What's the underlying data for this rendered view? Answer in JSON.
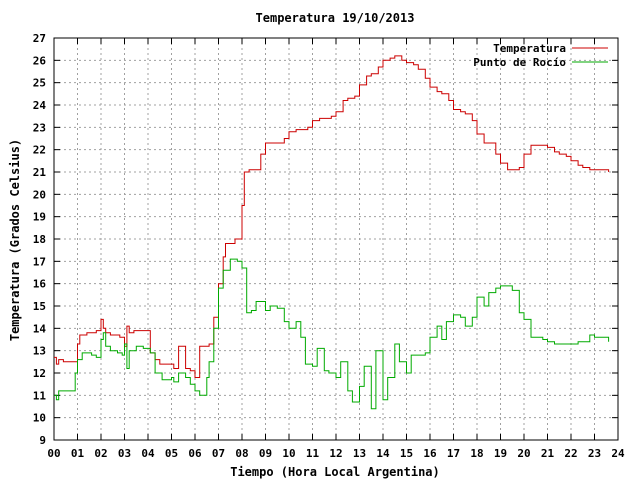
{
  "chart_data": {
    "type": "line",
    "title": "Temperatura 19/10/2013",
    "xlabel": "Tiempo (Hora Local Argentina)",
    "ylabel": "Temperatura (Grados Celsius)",
    "xlim": [
      0,
      24
    ],
    "ylim": [
      9,
      27
    ],
    "xticks": [
      "00",
      "01",
      "02",
      "03",
      "04",
      "05",
      "06",
      "07",
      "08",
      "09",
      "10",
      "11",
      "12",
      "13",
      "14",
      "15",
      "16",
      "17",
      "18",
      "19",
      "20",
      "21",
      "22",
      "23",
      "24"
    ],
    "yticks": [
      9,
      10,
      11,
      12,
      13,
      14,
      15,
      16,
      17,
      18,
      19,
      20,
      21,
      22,
      23,
      24,
      25,
      26,
      27
    ],
    "grid": true,
    "legend_position": "top-right",
    "series": [
      {
        "name": "Temperatura",
        "color": "#cc0000",
        "x": [
          0.0,
          0.1,
          0.2,
          0.4,
          0.6,
          0.9,
          1.0,
          1.1,
          1.4,
          1.8,
          2.0,
          2.1,
          2.2,
          2.4,
          2.8,
          3.0,
          3.1,
          3.2,
          3.4,
          3.8,
          4.1,
          4.3,
          4.5,
          4.8,
          5.0,
          5.1,
          5.3,
          5.6,
          5.8,
          6.0,
          6.2,
          6.5,
          6.6,
          6.8,
          7.0,
          7.2,
          7.3,
          7.5,
          7.7,
          8.0,
          8.1,
          8.3,
          8.5,
          8.8,
          9.0,
          9.3,
          9.5,
          9.8,
          10.0,
          10.3,
          10.5,
          10.8,
          11.0,
          11.3,
          11.5,
          11.8,
          12.0,
          12.3,
          12.5,
          12.8,
          13.0,
          13.3,
          13.5,
          13.8,
          14.0,
          14.3,
          14.5,
          14.8,
          15.0,
          15.3,
          15.5,
          15.8,
          16.0,
          16.3,
          16.5,
          16.8,
          17.0,
          17.3,
          17.5,
          17.8,
          18.0,
          18.3,
          18.5,
          18.8,
          19.0,
          19.3,
          19.5,
          19.8,
          20.0,
          20.3,
          20.5,
          20.8,
          21.0,
          21.3,
          21.5,
          21.8,
          22.0,
          22.3,
          22.5,
          22.8,
          23.0,
          23.3,
          23.5,
          23.6
        ],
        "y": [
          12.7,
          12.4,
          12.6,
          12.5,
          12.5,
          12.5,
          13.3,
          13.7,
          13.8,
          13.9,
          14.4,
          14.0,
          13.8,
          13.7,
          13.6,
          13.2,
          14.1,
          13.8,
          13.9,
          13.9,
          12.9,
          12.6,
          12.4,
          12.4,
          12.4,
          12.2,
          13.2,
          12.2,
          12.1,
          11.8,
          13.2,
          13.2,
          13.3,
          14.5,
          16.0,
          17.2,
          17.8,
          17.8,
          18.0,
          19.5,
          21.0,
          21.1,
          21.1,
          21.8,
          22.3,
          22.3,
          22.3,
          22.5,
          22.8,
          22.9,
          22.9,
          23.0,
          23.3,
          23.4,
          23.4,
          23.5,
          23.7,
          24.2,
          24.3,
          24.4,
          24.9,
          25.3,
          25.4,
          25.7,
          26.0,
          26.1,
          26.2,
          26.0,
          25.9,
          25.8,
          25.6,
          25.2,
          24.8,
          24.6,
          24.5,
          24.2,
          23.8,
          23.7,
          23.6,
          23.3,
          22.7,
          22.3,
          22.3,
          21.8,
          21.4,
          21.1,
          21.1,
          21.2,
          21.8,
          22.2,
          22.2,
          22.2,
          22.1,
          21.9,
          21.8,
          21.7,
          21.5,
          21.3,
          21.2,
          21.1,
          21.1,
          21.1,
          21.1,
          21.0
        ]
      },
      {
        "name": "Punto de Rocío",
        "color": "#00aa00",
        "x": [
          0.0,
          0.1,
          0.2,
          0.4,
          0.6,
          0.9,
          1.0,
          1.2,
          1.4,
          1.6,
          1.8,
          2.0,
          2.1,
          2.2,
          2.4,
          2.7,
          2.9,
          3.0,
          3.1,
          3.2,
          3.5,
          3.8,
          4.1,
          4.3,
          4.6,
          5.0,
          5.1,
          5.3,
          5.6,
          5.8,
          6.0,
          6.2,
          6.5,
          6.6,
          6.8,
          7.0,
          7.2,
          7.5,
          7.8,
          8.0,
          8.2,
          8.4,
          8.6,
          9.0,
          9.2,
          9.5,
          9.8,
          10.0,
          10.3,
          10.5,
          10.7,
          11.0,
          11.2,
          11.5,
          11.7,
          12.0,
          12.2,
          12.5,
          12.7,
          13.0,
          13.2,
          13.5,
          13.7,
          14.0,
          14.2,
          14.5,
          14.7,
          15.0,
          15.2,
          15.5,
          15.8,
          16.0,
          16.3,
          16.5,
          16.7,
          17.0,
          17.3,
          17.5,
          17.8,
          18.0,
          18.3,
          18.5,
          18.8,
          19.0,
          19.3,
          19.5,
          19.8,
          20.0,
          20.3,
          20.5,
          20.8,
          21.0,
          21.3,
          21.5,
          21.8,
          22.0,
          22.3,
          22.5,
          22.8,
          23.0,
          23.3,
          23.5,
          23.6
        ],
        "y": [
          11.0,
          10.8,
          11.2,
          11.2,
          11.2,
          12.0,
          12.6,
          12.9,
          12.9,
          12.8,
          12.7,
          13.5,
          13.8,
          13.2,
          13.0,
          12.9,
          12.8,
          13.3,
          12.2,
          13.0,
          13.2,
          13.1,
          12.9,
          12.0,
          11.7,
          11.8,
          11.6,
          12.0,
          11.8,
          11.5,
          11.2,
          11.0,
          11.8,
          12.5,
          14.0,
          15.8,
          16.6,
          17.1,
          17.0,
          16.7,
          14.7,
          14.8,
          15.2,
          14.8,
          15.0,
          14.9,
          14.3,
          14.0,
          14.3,
          13.6,
          12.4,
          12.3,
          13.1,
          12.1,
          12.0,
          11.8,
          12.5,
          11.2,
          10.7,
          11.4,
          12.3,
          10.4,
          13.0,
          10.8,
          11.8,
          13.3,
          12.5,
          12.0,
          12.8,
          12.8,
          12.9,
          13.6,
          14.1,
          13.5,
          14.3,
          14.6,
          14.5,
          14.1,
          14.5,
          15.4,
          15.0,
          15.6,
          15.8,
          15.9,
          15.9,
          15.7,
          14.7,
          14.4,
          13.6,
          13.6,
          13.5,
          13.4,
          13.3,
          13.3,
          13.3,
          13.3,
          13.4,
          13.4,
          13.7,
          13.6,
          13.6,
          13.6,
          13.4
        ]
      }
    ]
  }
}
